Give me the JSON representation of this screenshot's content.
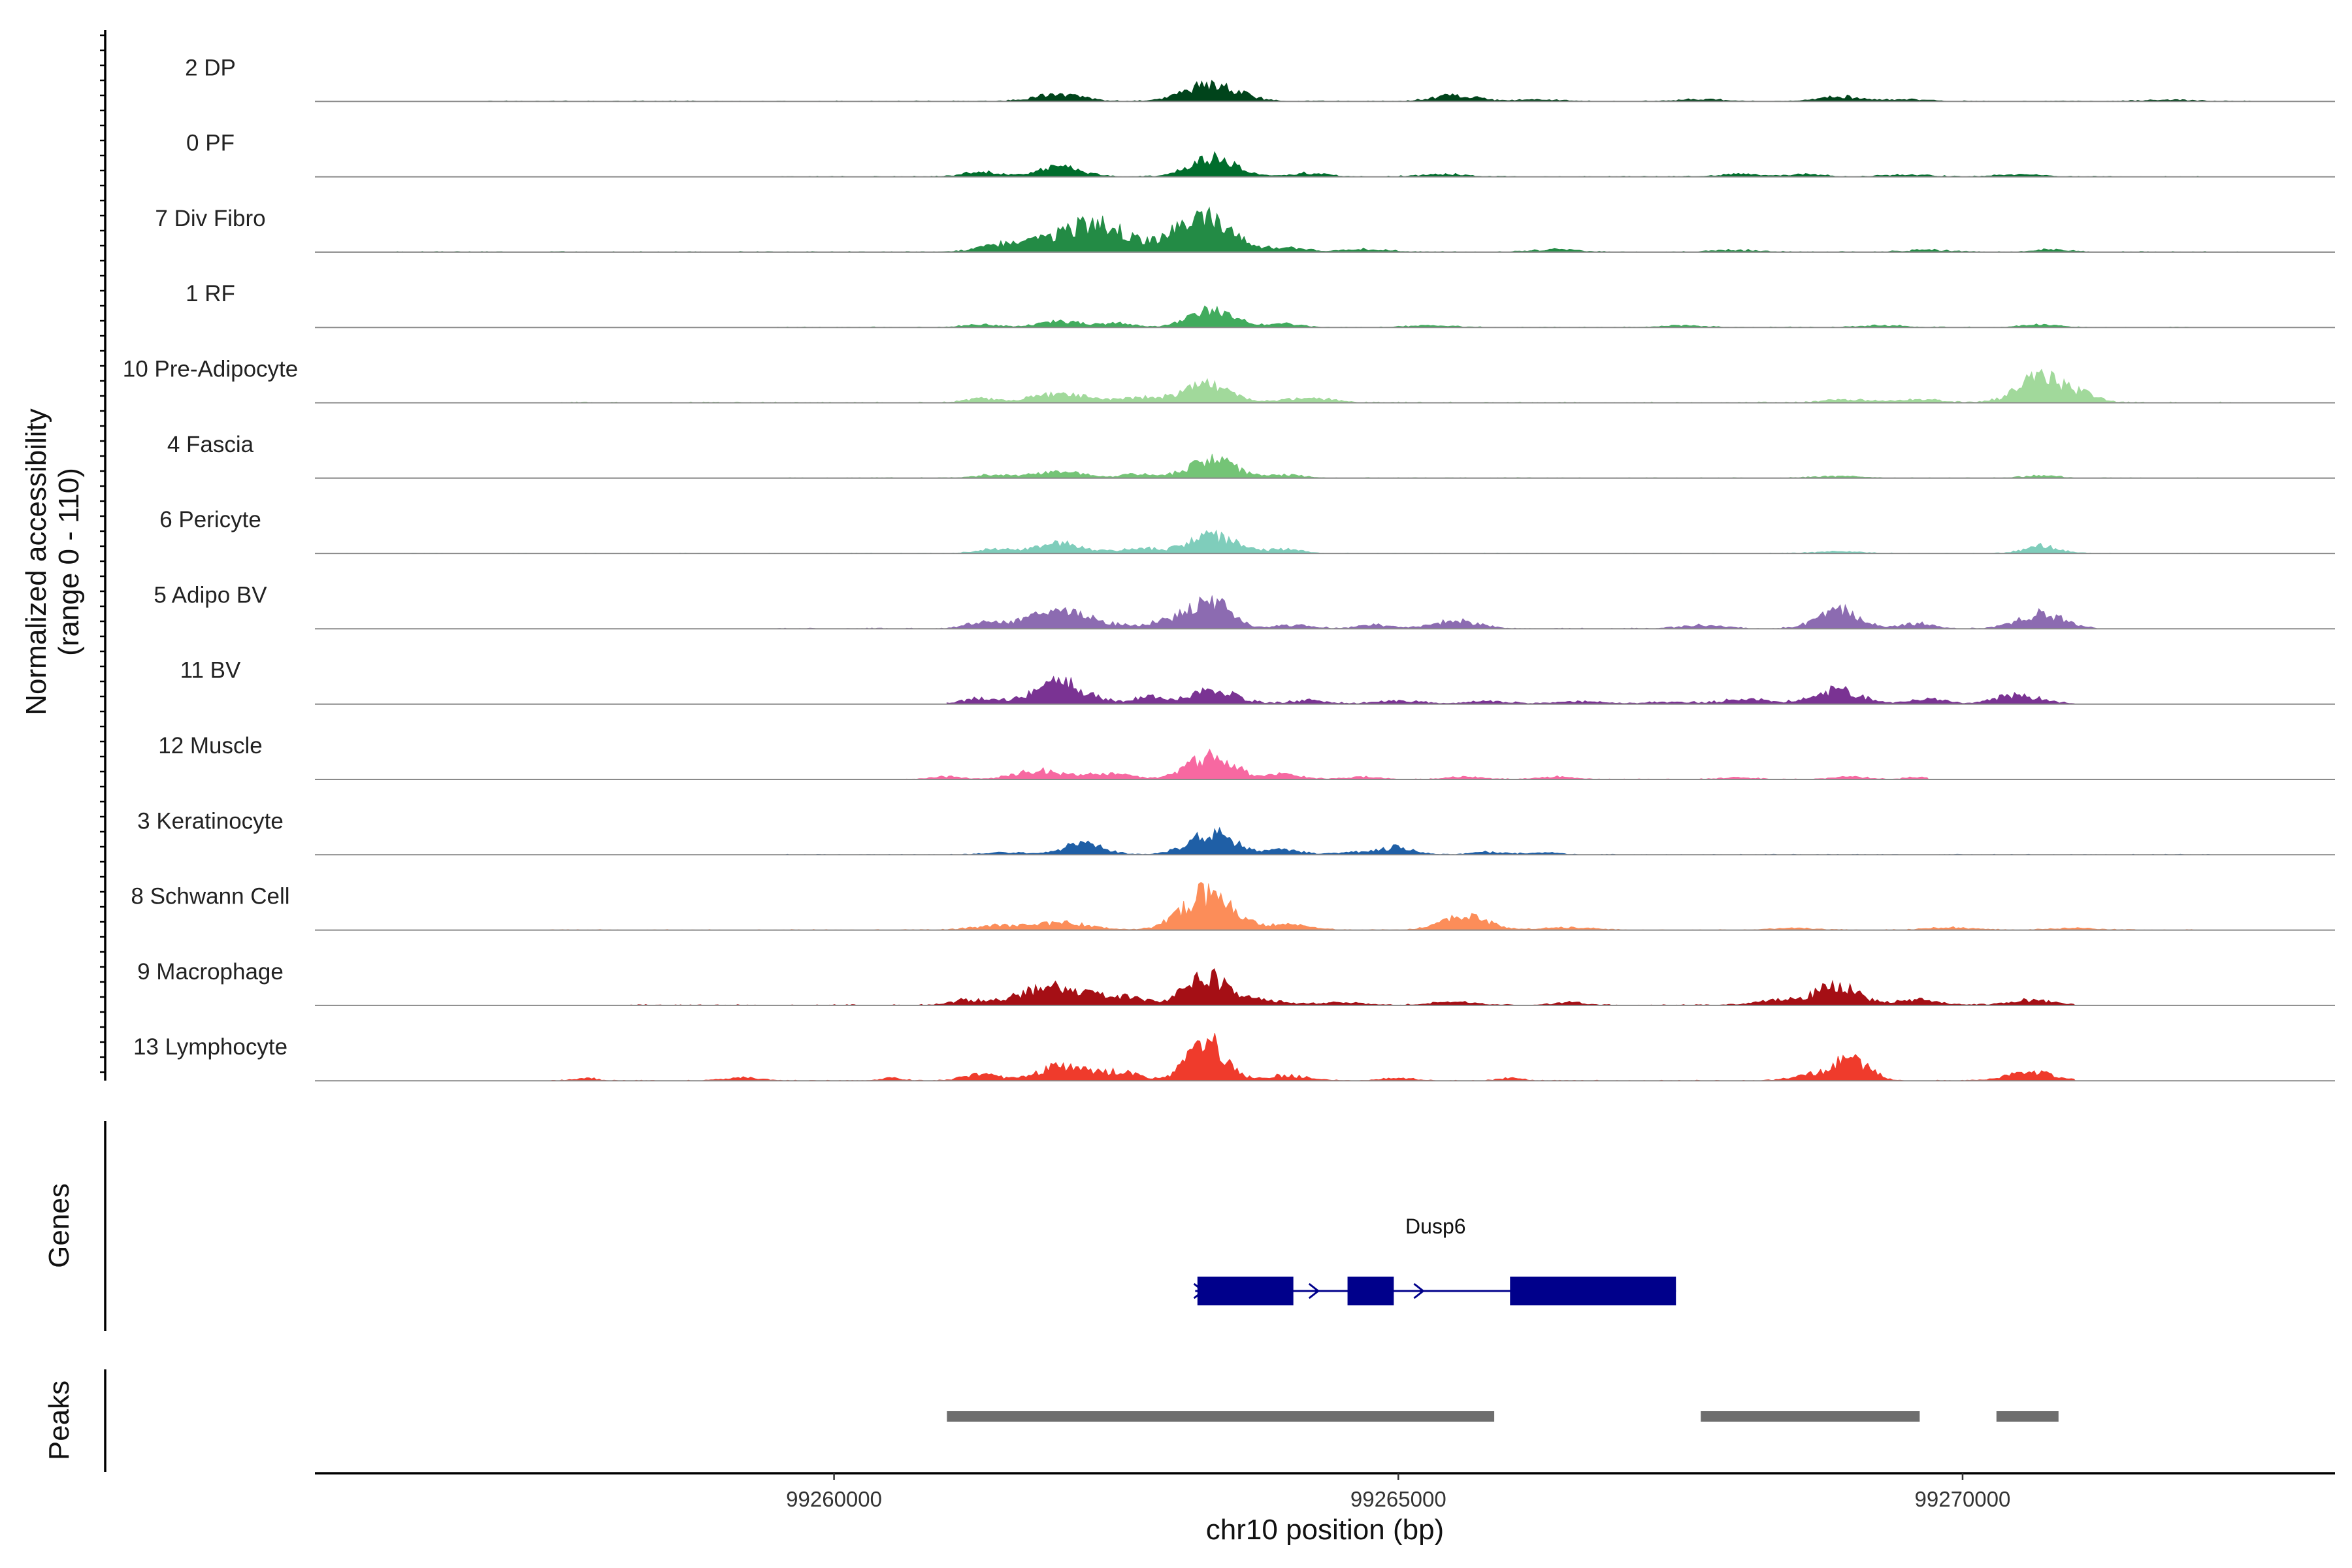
{
  "chart_data": {
    "type": "area",
    "ylabel_line1": "Normalized accessibility",
    "ylabel_line2": "(range 0 - 110)",
    "xlabel": "chr10 position (bp)",
    "xlim": [
      99255400,
      99273300
    ],
    "ylim": [
      0,
      110
    ],
    "x_ticks": [
      99260000,
      99265000,
      99270000
    ],
    "x_tick_labels": [
      "99260000",
      "99265000",
      "99270000"
    ],
    "genes_label": "Genes",
    "peaks_label": "Peaks",
    "gene": {
      "name": "Dusp6",
      "start": 99263200,
      "end": 99267460,
      "strand": "+",
      "exons": [
        [
          99263220,
          99264070
        ],
        [
          99264550,
          99264960
        ],
        [
          99265990,
          99267460
        ]
      ],
      "color": "#00008b"
    },
    "peaks": [
      {
        "start": 99261000,
        "end": 99265850
      },
      {
        "start": 99267680,
        "end": 99269620
      },
      {
        "start": 99270300,
        "end": 99270850
      }
    ],
    "peak_color": "#6e6e6e",
    "tracks": [
      {
        "name": "2 DP",
        "color": "#00441b",
        "peaks": [
          [
            99262000,
            12,
            200
          ],
          [
            99263350,
            28,
            230
          ],
          [
            99265500,
            10,
            180
          ],
          [
            99268900,
            8,
            180
          ],
          [
            99266200,
            3,
            200
          ],
          [
            99267700,
            3,
            200
          ],
          [
            99269500,
            3,
            200
          ],
          [
            99271800,
            2,
            220
          ]
        ],
        "span": [
          99256900,
          99272600
        ],
        "base": 1.2
      },
      {
        "name": "0 PF",
        "color": "#006d2c",
        "peaks": [
          [
            99261300,
            8,
            150
          ],
          [
            99262000,
            15,
            200
          ],
          [
            99263350,
            30,
            200
          ],
          [
            99264200,
            6,
            150
          ],
          [
            99265400,
            4,
            200
          ],
          [
            99268000,
            4,
            200
          ],
          [
            99268600,
            4,
            150
          ],
          [
            99269500,
            3,
            200
          ],
          [
            99270500,
            3,
            200
          ]
        ],
        "span": [
          99259500,
          99272100
        ],
        "base": 1.2
      },
      {
        "name": "7 Div Fibro",
        "color": "#238b45",
        "peaks": [
          [
            99261600,
            14,
            260
          ],
          [
            99262300,
            44,
            300
          ],
          [
            99263100,
            30,
            180
          ],
          [
            99263400,
            42,
            180
          ],
          [
            99264000,
            8,
            180
          ],
          [
            99264700,
            4,
            200
          ],
          [
            99266400,
            4,
            200
          ],
          [
            99268000,
            3,
            200
          ],
          [
            99269700,
            3,
            200
          ],
          [
            99270800,
            4,
            150
          ]
        ],
        "span": [
          99256000,
          99272600
        ],
        "base": 1.2
      },
      {
        "name": "1 RF",
        "color": "#41ab5d",
        "peaks": [
          [
            99261300,
            5,
            150
          ],
          [
            99262000,
            10,
            180
          ],
          [
            99262500,
            6,
            150
          ],
          [
            99263350,
            28,
            200
          ],
          [
            99264000,
            5,
            150
          ],
          [
            99265300,
            3,
            200
          ],
          [
            99267500,
            3,
            200
          ],
          [
            99269300,
            3,
            200
          ],
          [
            99270700,
            5,
            150
          ]
        ],
        "span": [
          99259500,
          99272100
        ],
        "base": 1.0
      },
      {
        "name": "10 Pre-Adipocyte",
        "color": "#a1d99b",
        "peaks": [
          [
            99261300,
            6,
            150
          ],
          [
            99262000,
            14,
            250
          ],
          [
            99262700,
            8,
            200
          ],
          [
            99263300,
            30,
            200
          ],
          [
            99264200,
            8,
            200
          ],
          [
            99269000,
            5,
            200
          ],
          [
            99269600,
            5,
            200
          ],
          [
            99270700,
            42,
            200
          ],
          [
            99271100,
            10,
            120
          ]
        ],
        "span": [
          99257500,
          99272600
        ],
        "base": 1.5
      },
      {
        "name": "4 Fascia",
        "color": "#74c476",
        "peaks": [
          [
            99261400,
            5,
            150
          ],
          [
            99262000,
            10,
            220
          ],
          [
            99262700,
            6,
            150
          ],
          [
            99263350,
            30,
            200
          ],
          [
            99264000,
            5,
            150
          ],
          [
            99268900,
            3,
            200
          ],
          [
            99270700,
            4,
            150
          ]
        ],
        "span": [
          99259500,
          99272100
        ],
        "base": 1.0
      },
      {
        "name": "6 Pericyte",
        "color": "#7fcdbb",
        "peaks": [
          [
            99261400,
            6,
            150
          ],
          [
            99262000,
            16,
            220
          ],
          [
            99262700,
            8,
            150
          ],
          [
            99263350,
            28,
            220
          ],
          [
            99264000,
            6,
            150
          ],
          [
            99268900,
            3,
            200
          ],
          [
            99270700,
            12,
            150
          ]
        ],
        "span": [
          99255600,
          99272300
        ],
        "base": 0.8
      },
      {
        "name": "5 Adipo BV",
        "color": "#8c6bb1",
        "peaks": [
          [
            99261300,
            8,
            150
          ],
          [
            99262000,
            26,
            300
          ],
          [
            99263000,
            14,
            200
          ],
          [
            99263350,
            38,
            180
          ],
          [
            99264100,
            6,
            150
          ],
          [
            99264800,
            6,
            150
          ],
          [
            99265500,
            12,
            200
          ],
          [
            99267700,
            5,
            200
          ],
          [
            99268900,
            30,
            180
          ],
          [
            99269600,
            8,
            150
          ],
          [
            99270700,
            24,
            200
          ]
        ],
        "span": [
          99259500,
          99271200
        ],
        "base": 1.5
      },
      {
        "name": "11 BV",
        "color": "#7a3393",
        "peaks": [
          [
            99261300,
            8,
            150
          ],
          [
            99262000,
            34,
            230
          ],
          [
            99262800,
            10,
            150
          ],
          [
            99263350,
            22,
            200
          ],
          [
            99264200,
            6,
            150
          ],
          [
            99265000,
            5,
            200
          ],
          [
            99265800,
            4,
            200
          ],
          [
            99266600,
            4,
            200
          ],
          [
            99267400,
            3,
            200
          ],
          [
            99268100,
            8,
            200
          ],
          [
            99268900,
            22,
            200
          ],
          [
            99269700,
            8,
            150
          ],
          [
            99270500,
            14,
            200
          ]
        ],
        "span": [
          99261000,
          99271000
        ],
        "base": 2.0
      },
      {
        "name": "12 Muscle",
        "color": "#f768a1",
        "peaks": [
          [
            99261000,
            4,
            150
          ],
          [
            99261800,
            14,
            200
          ],
          [
            99262400,
            10,
            200
          ],
          [
            99263350,
            38,
            200
          ],
          [
            99264000,
            8,
            150
          ],
          [
            99264700,
            4,
            150
          ],
          [
            99265600,
            4,
            150
          ],
          [
            99266400,
            4,
            150
          ],
          [
            99268000,
            3,
            150
          ],
          [
            99269000,
            4,
            150
          ],
          [
            99269600,
            4,
            100
          ]
        ],
        "span": [
          99260600,
          99269700
        ],
        "base": 1.0
      },
      {
        "name": "3 Keratinocyte",
        "color": "#1f5fa6",
        "peaks": [
          [
            99261500,
            4,
            150
          ],
          [
            99262200,
            18,
            180
          ],
          [
            99263350,
            34,
            200
          ],
          [
            99264000,
            8,
            150
          ],
          [
            99264600,
            4,
            150
          ],
          [
            99265000,
            12,
            150
          ],
          [
            99265800,
            4,
            150
          ],
          [
            99266300,
            3,
            150
          ]
        ],
        "span": [
          99259500,
          99272300
        ],
        "base": 1.0
      },
      {
        "name": "8 Schwann Cell",
        "color": "#fc8d59",
        "peaks": [
          [
            99261400,
            6,
            200
          ],
          [
            99262000,
            12,
            250
          ],
          [
            99263300,
            58,
            220
          ],
          [
            99264000,
            8,
            200
          ],
          [
            99265600,
            22,
            200
          ],
          [
            99266500,
            4,
            200
          ],
          [
            99268500,
            3,
            200
          ],
          [
            99269900,
            4,
            200
          ],
          [
            99271000,
            3,
            200
          ]
        ],
        "span": [
          99257400,
          99272100
        ],
        "base": 1.0
      },
      {
        "name": "9 Macrophage",
        "color": "#a50f15",
        "peaks": [
          [
            99261200,
            8,
            150
          ],
          [
            99261700,
            14,
            200
          ],
          [
            99262000,
            22,
            200
          ],
          [
            99262500,
            14,
            250
          ],
          [
            99263300,
            48,
            180
          ],
          [
            99263800,
            8,
            200
          ],
          [
            99264500,
            4,
            200
          ],
          [
            99265500,
            5,
            200
          ],
          [
            99266500,
            4,
            150
          ],
          [
            99268400,
            8,
            200
          ],
          [
            99268900,
            34,
            180
          ],
          [
            99269600,
            8,
            200
          ],
          [
            99270600,
            8,
            200
          ]
        ],
        "span": [
          99258200,
          99271000
        ],
        "base": 1.5
      },
      {
        "name": "13 Lymphocyte",
        "color": "#ef3b2c",
        "peaks": [
          [
            99257800,
            4,
            100
          ],
          [
            99259200,
            5,
            150
          ],
          [
            99260500,
            4,
            100
          ],
          [
            99261300,
            10,
            150
          ],
          [
            99262000,
            22,
            200
          ],
          [
            99262500,
            14,
            200
          ],
          [
            99263300,
            64,
            160
          ],
          [
            99264000,
            8,
            200
          ],
          [
            99265000,
            4,
            150
          ],
          [
            99266000,
            5,
            100
          ],
          [
            99268600,
            8,
            150
          ],
          [
            99269000,
            36,
            160
          ],
          [
            99270600,
            14,
            200
          ]
        ],
        "span": [
          99257500,
          99271000
        ],
        "base": 1.0
      }
    ]
  }
}
